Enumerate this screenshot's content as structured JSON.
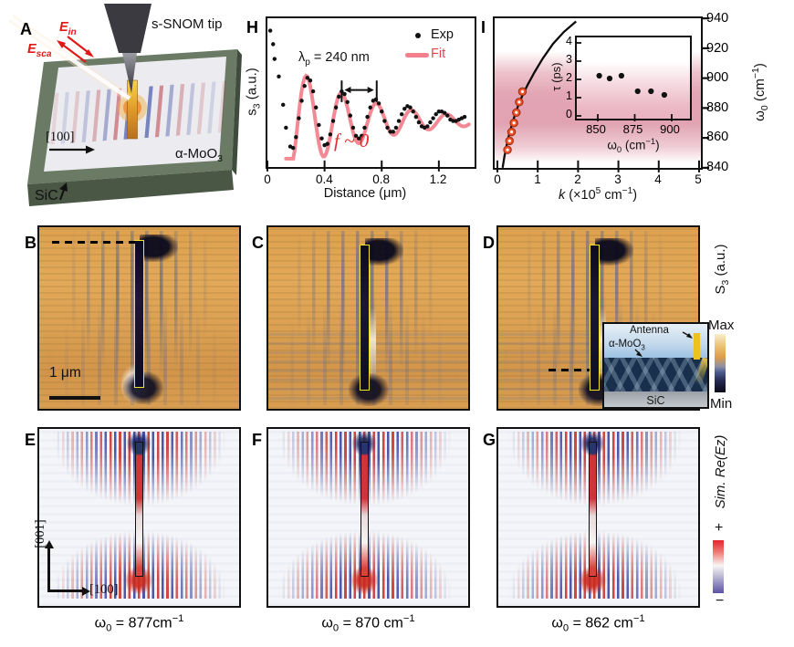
{
  "panel_labels": {
    "a": "A",
    "b": "B",
    "c": "C",
    "d": "D",
    "e": "E",
    "f": "F",
    "g": "G",
    "h": "H",
    "i": "I"
  },
  "panel_a": {
    "tip_label": "s-SNOM tip",
    "e_in": {
      "base": "E",
      "sub": "in"
    },
    "e_sca": {
      "base": "E",
      "sub": "sca"
    },
    "crystal_axis": "[100]",
    "material": {
      "base": "α-MoO",
      "sub": "3"
    },
    "substrate": "SiC"
  },
  "panel_h": {
    "ylabel": {
      "base": "s",
      "sub": "3",
      "rest": " (a.u.)"
    },
    "xlabel": "Distance (μm)",
    "legend": {
      "exp": "Exp",
      "fit": "Fit"
    },
    "wavelength": {
      "base": "λ",
      "sub": "p",
      "rest": " = 240 nm"
    },
    "annotation": "f ~ 0"
  },
  "panel_i": {
    "xlabel": {
      "pre": "k",
      "mid1": " (×10",
      "sup1": "5",
      "mid2": " cm",
      "sup2": "−1",
      "post": ")"
    },
    "ylabel_right": {
      "base": "ω",
      "sub": "0",
      "mid": " (cm",
      "sup": "−1",
      "post": ")"
    },
    "inset": {
      "ylabel": "τ (ps)",
      "xlabel": {
        "base": "ω",
        "sub": "0",
        "mid": " (cm",
        "sup": "−1",
        "post": ")"
      }
    }
  },
  "panel_b": {
    "scale_bar": "1 μm"
  },
  "panel_d_inset": {
    "antenna": "Antenna",
    "material": {
      "base": "α-MoO",
      "sub": "3"
    },
    "substrate": "SiC"
  },
  "panel_e": {
    "axis_vertical": "[001]",
    "axis_horizontal": "[100]"
  },
  "colorbar_s3": {
    "label": {
      "base": "S",
      "sub": "3",
      "rest": " (a.u.)"
    },
    "max": "Max",
    "min": "Min"
  },
  "colorbar_sim": {
    "label": "Sim. Re(Ez)",
    "plus": "+",
    "minus": "−"
  },
  "captions": {
    "e": {
      "base": "ω",
      "sub": "0",
      "mid": " = 877cm",
      "sup": "−1"
    },
    "f": {
      "base": "ω",
      "sub": "0",
      "mid": " = 870 cm",
      "sup": "−1"
    },
    "g": {
      "base": "ω",
      "sub": "0",
      "mid": " = 862 cm",
      "sup": "−1"
    }
  },
  "chart_data": [
    {
      "panel": "H",
      "type": "scatter",
      "title": "",
      "xlabel": "Distance (μm)",
      "ylabel": "s₃ (a.u.)",
      "xlim": [
        0,
        1.45
      ],
      "xticks": [
        "0",
        "0.4",
        "0.8",
        "1.2"
      ],
      "grid": false,
      "legend_position": "top-right",
      "annotations": [
        "λp = 240 nm",
        "f ~ 0"
      ],
      "series": [
        {
          "name": "Exp",
          "type": "scatter",
          "x": [
            0.02,
            0.04,
            0.05,
            0.08,
            0.11,
            0.13,
            0.16,
            0.18,
            0.2,
            0.22,
            0.24,
            0.26,
            0.28,
            0.3,
            0.32,
            0.34,
            0.36,
            0.38,
            0.4,
            0.42,
            0.44,
            0.46,
            0.48,
            0.5,
            0.52,
            0.54,
            0.56,
            0.58,
            0.6,
            0.62,
            0.64,
            0.66,
            0.68,
            0.7,
            0.72,
            0.74,
            0.76,
            0.78,
            0.8,
            0.82,
            0.84,
            0.86,
            0.88,
            0.9,
            0.92,
            0.94,
            0.96,
            0.98,
            1.0,
            1.02,
            1.04,
            1.06,
            1.08,
            1.1,
            1.12,
            1.14,
            1.16,
            1.18,
            1.2,
            1.22,
            1.24,
            1.26,
            1.28,
            1.3,
            1.32,
            1.34,
            1.36,
            1.38
          ],
          "y": [
            0.97,
            0.87,
            0.76,
            0.63,
            0.42,
            0.25,
            0.11,
            0.1,
            0.18,
            0.32,
            0.45,
            0.56,
            0.62,
            0.6,
            0.52,
            0.4,
            0.27,
            0.17,
            0.12,
            0.13,
            0.2,
            0.3,
            0.4,
            0.48,
            0.52,
            0.5,
            0.44,
            0.34,
            0.25,
            0.19,
            0.17,
            0.19,
            0.25,
            0.33,
            0.4,
            0.45,
            0.46,
            0.43,
            0.37,
            0.3,
            0.25,
            0.22,
            0.22,
            0.25,
            0.3,
            0.35,
            0.39,
            0.41,
            0.4,
            0.37,
            0.33,
            0.29,
            0.26,
            0.25,
            0.26,
            0.29,
            0.32,
            0.35,
            0.37,
            0.37,
            0.36,
            0.34,
            0.31,
            0.3,
            0.3,
            0.31,
            0.32,
            0.33
          ],
          "y_units": "normalized 0-1 of plot height"
        },
        {
          "name": "Fit",
          "type": "line",
          "model": "damped cosine",
          "offset": 0.3,
          "amplitude": 0.335,
          "period_um": 0.245,
          "first_peak_um": 0.275,
          "decay_um": 0.52,
          "x_range": [
            0.13,
            1.42
          ],
          "polariton_wavelength_nm": 240
        }
      ],
      "lambda_marker": {
        "peak_positions_um": [
          0.52,
          0.765
        ],
        "bar_y": [
          0.6,
          0.44
        ],
        "arrow_y": 0.53
      }
    },
    {
      "panel": "I",
      "type": "line+scatter",
      "xlabel": "k (×10⁵ cm⁻¹)",
      "ylabel_right": "ω₀ (cm⁻¹)",
      "xlim": [
        0,
        5
      ],
      "ylim": [
        840,
        940
      ],
      "xticks": [
        "0",
        "1",
        "2",
        "3",
        "4",
        "5"
      ],
      "yticks_right": [
        "840",
        "860",
        "880",
        "900",
        "920",
        "940"
      ],
      "grid": false,
      "dispersion_curve": {
        "k_1e5_cm": [
          0.13,
          0.17,
          0.22,
          0.28,
          0.35,
          0.43,
          0.52,
          0.63,
          0.76,
          0.92,
          1.12,
          1.38,
          1.65,
          1.95
        ],
        "omega0_cm": [
          840,
          847,
          854,
          861,
          868,
          875,
          882,
          889,
          896,
          904,
          913,
          923,
          931,
          938
        ]
      },
      "measured_points": {
        "k_1e5_cm": [
          0.25,
          0.3,
          0.35,
          0.41,
          0.47,
          0.54,
          0.62
        ],
        "omega0_cm": [
          852,
          858,
          864,
          870,
          877,
          884,
          891
        ]
      },
      "inset": {
        "type": "scatter",
        "xlabel": "ω₀ (cm⁻¹)",
        "ylabel": "τ (ps)",
        "xlim": [
          836,
          912
        ],
        "ylim": [
          0,
          4
        ],
        "xticks": [
          "850",
          "875",
          "900"
        ],
        "yticks": [
          "0",
          "1",
          "2",
          "3",
          "4"
        ],
        "x": [
          851,
          858,
          866,
          877,
          886,
          895
        ],
        "y": [
          2.2,
          2.05,
          2.2,
          1.35,
          1.35,
          1.15
        ]
      }
    }
  ]
}
